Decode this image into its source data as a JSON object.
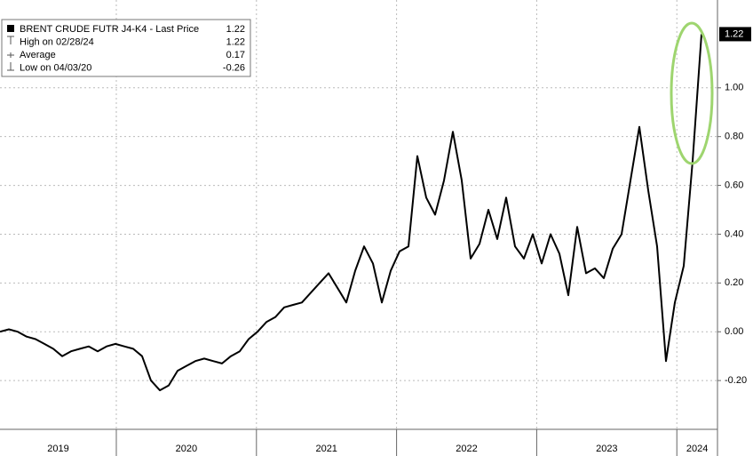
{
  "chart_data": {
    "type": "line",
    "legend": [
      {
        "label": "BRENT CRUDE FUTR J4-K4 - Last Price",
        "value": 1.22
      },
      {
        "label": "High on 02/28/24",
        "value": 1.22
      },
      {
        "label": "Average",
        "value": 0.17
      },
      {
        "label": "Low on 04/03/20",
        "value": -0.26
      }
    ],
    "last_value_tag": 1.22,
    "color": "#000000",
    "values": [
      0.0,
      0.01,
      0.0,
      -0.02,
      -0.03,
      -0.05,
      -0.07,
      -0.1,
      -0.08,
      -0.07,
      -0.06,
      -0.08,
      -0.06,
      -0.05,
      -0.06,
      -0.07,
      -0.1,
      -0.2,
      -0.24,
      -0.22,
      -0.16,
      -0.14,
      -0.12,
      -0.11,
      -0.12,
      -0.13,
      -0.1,
      -0.08,
      -0.03,
      0.0,
      0.04,
      0.06,
      0.1,
      0.11,
      0.12,
      0.16,
      0.2,
      0.24,
      0.18,
      0.12,
      0.25,
      0.35,
      0.28,
      0.12,
      0.25,
      0.33,
      0.35,
      0.72,
      0.55,
      0.48,
      0.62,
      0.82,
      0.62,
      0.3,
      0.36,
      0.5,
      0.38,
      0.55,
      0.35,
      0.3,
      0.4,
      0.28,
      0.4,
      0.32,
      0.15,
      0.43,
      0.24,
      0.26,
      0.22,
      0.34,
      0.4,
      0.62,
      0.84,
      0.58,
      0.35,
      -0.12,
      0.12,
      0.27,
      0.7,
      1.22
    ],
    "ylim": [
      -0.4,
      1.36
    ],
    "yticks": [
      {
        "value": 1.0,
        "label": "1.00"
      },
      {
        "value": 0.8,
        "label": "0.80"
      },
      {
        "value": 0.6,
        "label": "0.60"
      },
      {
        "value": 0.4,
        "label": "0.40"
      },
      {
        "value": 0.2,
        "label": "0.20"
      },
      {
        "value": 0,
        "label": "0.00"
      },
      {
        "value": -0.2,
        "label": "-0.20"
      }
    ],
    "xlim": [
      2019.17,
      2024.29
    ],
    "xticks": [
      2019,
      2020,
      2021,
      2022,
      2023,
      2024
    ],
    "grid": true
  }
}
